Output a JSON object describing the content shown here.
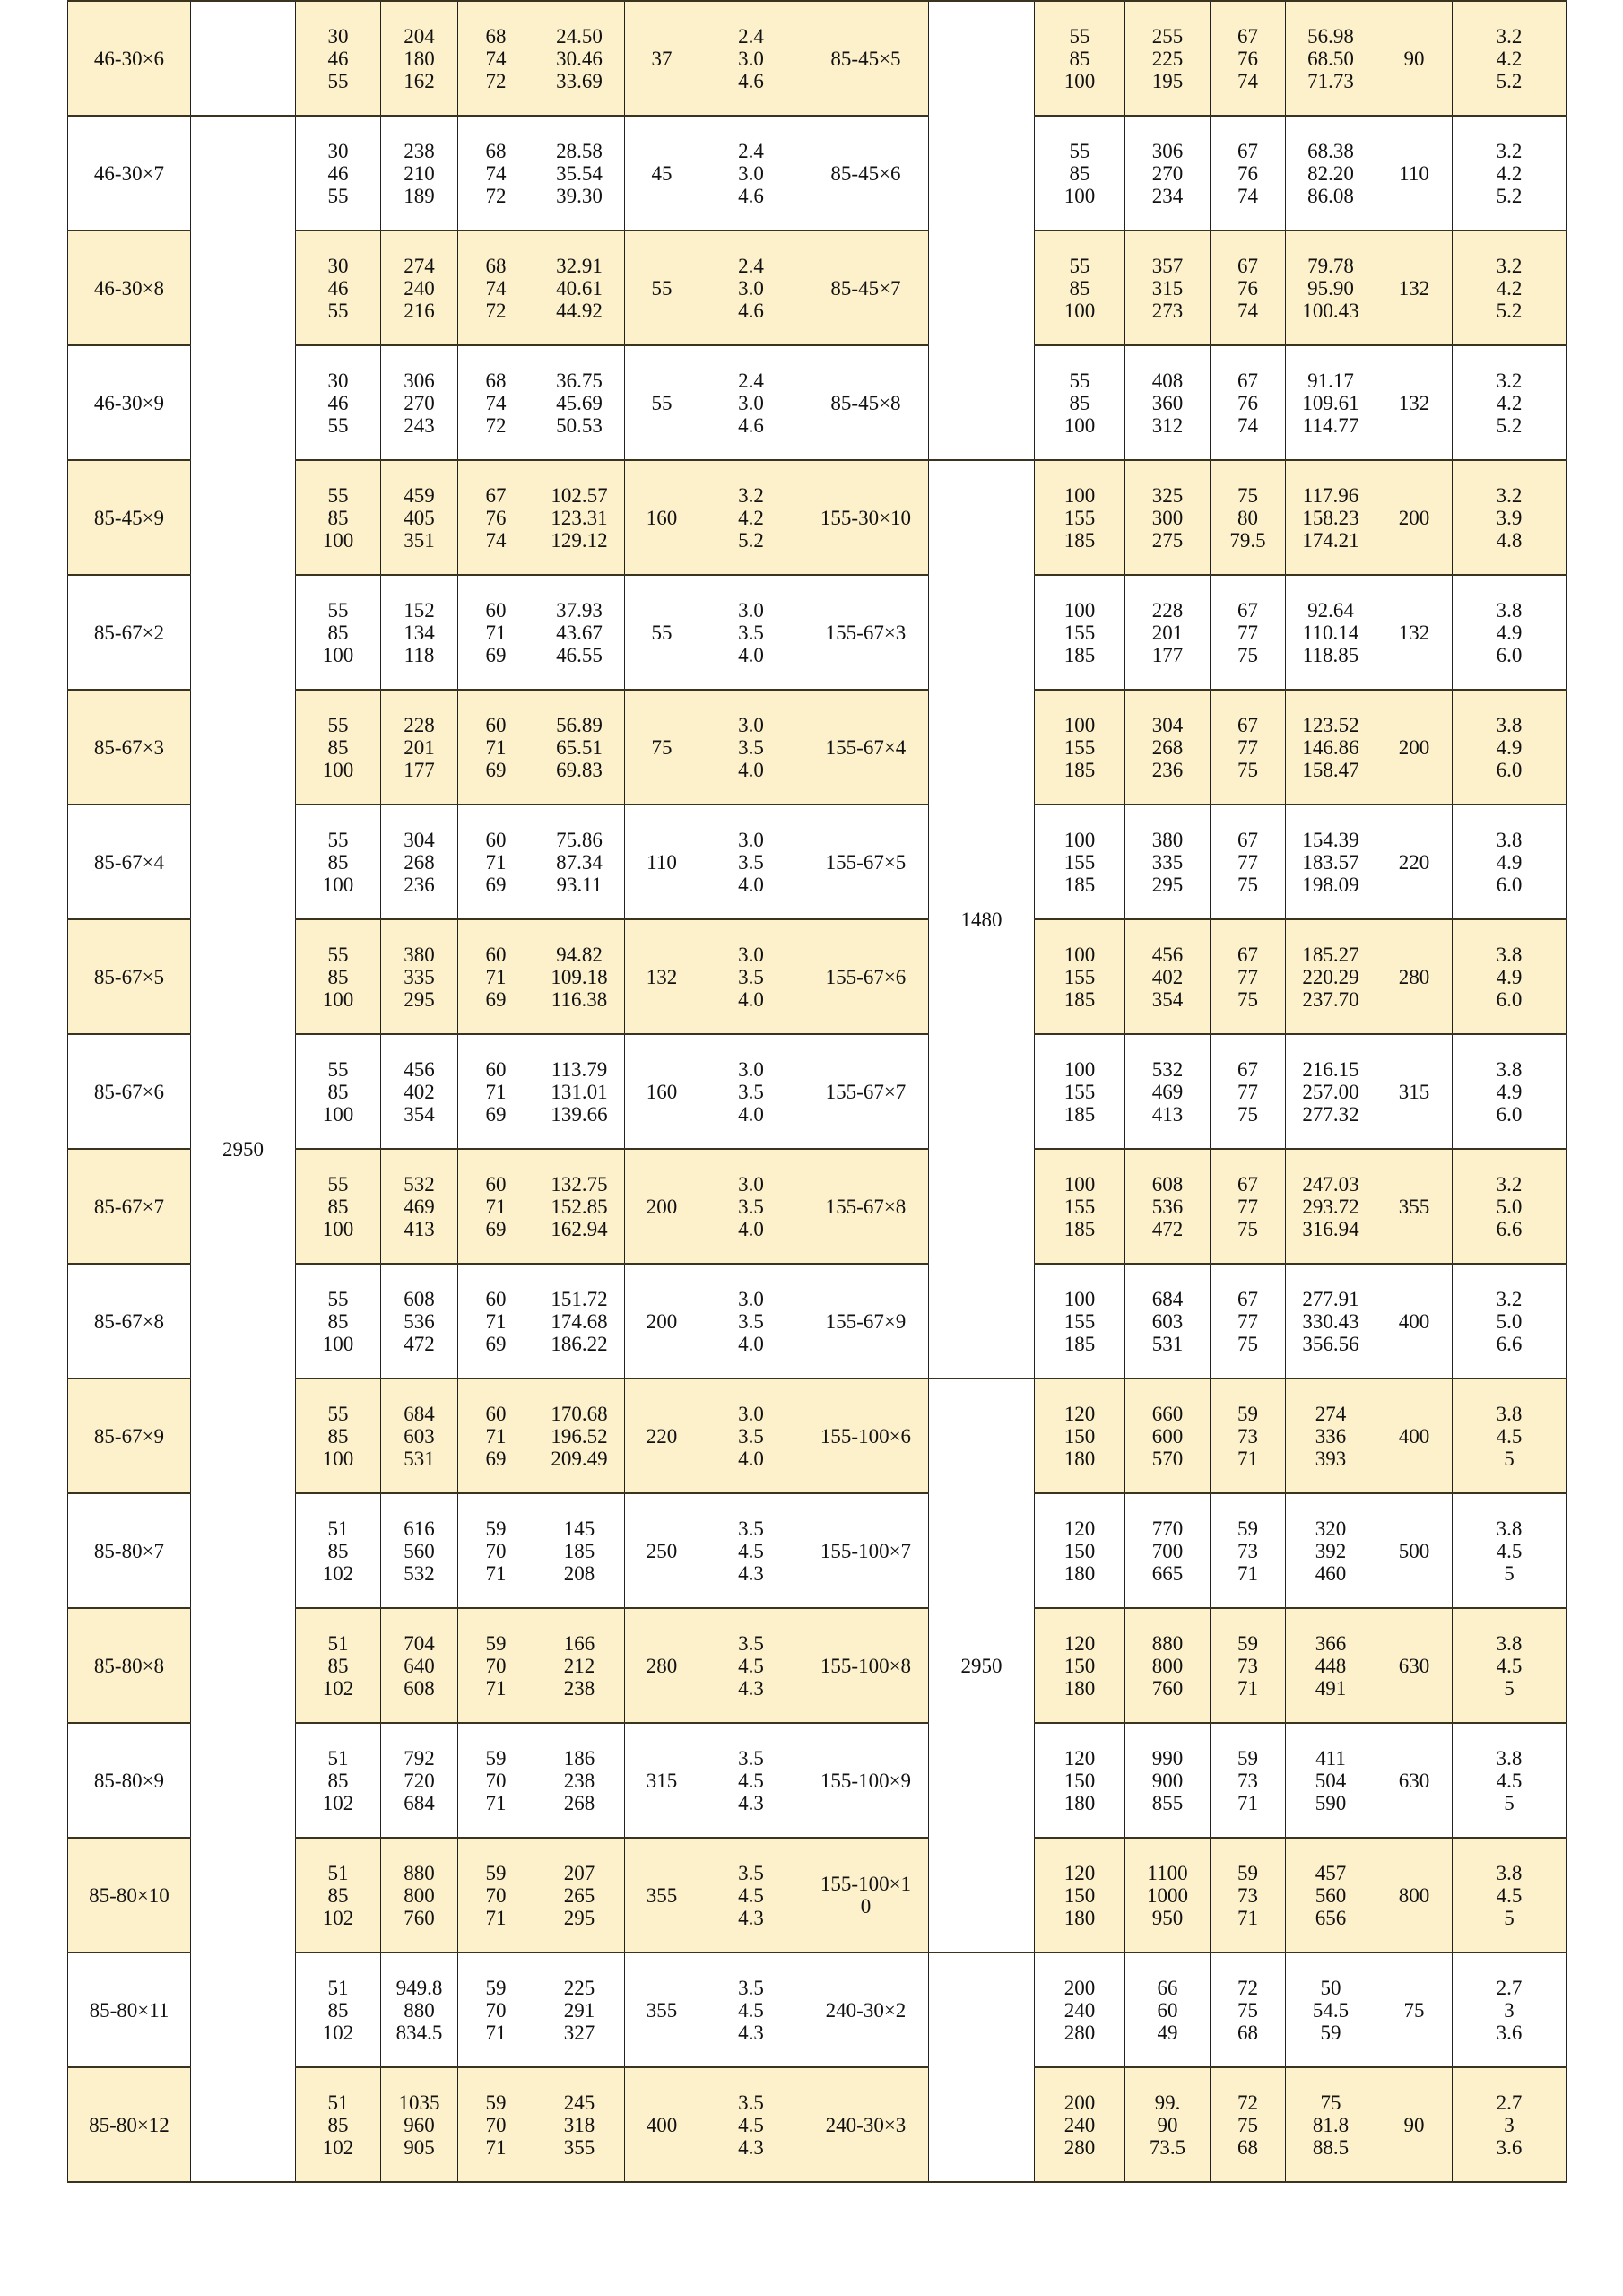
{
  "colors": {
    "highlight_row": "#fdf1cc",
    "plain_row": "#ffffff",
    "border": "#222222"
  },
  "merged": {
    "left_length": "2950",
    "right_length_a": "1480",
    "right_length_b": "2950"
  },
  "rows": [
    {
      "l": "46-30×6",
      "a": "30\n46\n55",
      "b": "204\n180\n162",
      "c": "68\n74\n72",
      "d": "24.50\n30.46\n33.69",
      "e": "37",
      "f": "2.4\n3.0\n4.6",
      "r": "85-45×5",
      "g": "55\n85\n100",
      "h": "255\n225\n195",
      "i": "67\n76\n74",
      "j": "56.98\n68.50\n71.73",
      "k": "90",
      "m": "3.2\n4.2\n5.2"
    },
    {
      "l": "46-30×7",
      "a": "30\n46\n55",
      "b": "238\n210\n189",
      "c": "68\n74\n72",
      "d": "28.58\n35.54\n39.30",
      "e": "45",
      "f": "2.4\n3.0\n4.6",
      "r": "85-45×6",
      "g": "55\n85\n100",
      "h": "306\n270\n234",
      "i": "67\n76\n74",
      "j": "68.38\n82.20\n86.08",
      "k": "110",
      "m": "3.2\n4.2\n5.2"
    },
    {
      "l": "46-30×8",
      "a": "30\n46\n55",
      "b": "274\n240\n216",
      "c": "68\n74\n72",
      "d": "32.91\n40.61\n44.92",
      "e": "55",
      "f": "2.4\n3.0\n4.6",
      "r": "85-45×7",
      "g": "55\n85\n100",
      "h": "357\n315\n273",
      "i": "67\n76\n74",
      "j": "79.78\n95.90\n100.43",
      "k": "132",
      "m": "3.2\n4.2\n5.2"
    },
    {
      "l": "46-30×9",
      "a": "30\n46\n55",
      "b": "306\n270\n243",
      "c": "68\n74\n72",
      "d": "36.75\n45.69\n50.53",
      "e": "55",
      "f": "2.4\n3.0\n4.6",
      "r": "85-45×8",
      "g": "55\n85\n100",
      "h": "408\n360\n312",
      "i": "67\n76\n74",
      "j": "91.17\n109.61\n114.77",
      "k": "132",
      "m": "3.2\n4.2\n5.2"
    },
    {
      "l": "85-45×9",
      "a": "55\n85\n100",
      "b": "459\n405\n351",
      "c": "67\n76\n74",
      "d": "102.57\n123.31\n129.12",
      "e": "160",
      "f": "3.2\n4.2\n5.2",
      "r": "155-30×10",
      "g": "100\n155\n185",
      "h": "325\n300\n275",
      "i": "75\n80\n79.5",
      "j": "117.96\n158.23\n174.21",
      "k": "200",
      "m": "3.2\n3.9\n4.8"
    },
    {
      "l": "85-67×2",
      "a": "55\n85\n100",
      "b": "152\n134\n118",
      "c": "60\n71\n69",
      "d": "37.93\n43.67\n46.55",
      "e": "55",
      "f": "3.0\n3.5\n4.0",
      "r": "155-67×3",
      "g": "100\n155\n185",
      "h": "228\n201\n177",
      "i": "67\n77\n75",
      "j": "92.64\n110.14\n118.85",
      "k": "132",
      "m": "3.8\n4.9\n6.0"
    },
    {
      "l": "85-67×3",
      "a": "55\n85\n100",
      "b": "228\n201\n177",
      "c": "60\n71\n69",
      "d": "56.89\n65.51\n69.83",
      "e": "75",
      "f": "3.0\n3.5\n4.0",
      "r": "155-67×4",
      "g": "100\n155\n185",
      "h": "304\n268\n236",
      "i": "67\n77\n75",
      "j": "123.52\n146.86\n158.47",
      "k": "200",
      "m": "3.8\n4.9\n6.0"
    },
    {
      "l": "85-67×4",
      "a": "55\n85\n100",
      "b": "304\n268\n236",
      "c": "60\n71\n69",
      "d": "75.86\n87.34\n93.11",
      "e": "110",
      "f": "3.0\n3.5\n4.0",
      "r": "155-67×5",
      "g": "100\n155\n185",
      "h": "380\n335\n295",
      "i": "67\n77\n75",
      "j": "154.39\n183.57\n198.09",
      "k": "220",
      "m": "3.8\n4.9\n6.0"
    },
    {
      "l": "85-67×5",
      "a": "55\n85\n100",
      "b": "380\n335\n295",
      "c": "60\n71\n69",
      "d": "94.82\n109.18\n116.38",
      "e": "132",
      "f": "3.0\n3.5\n4.0",
      "r": "155-67×6",
      "g": "100\n155\n185",
      "h": "456\n402\n354",
      "i": "67\n77\n75",
      "j": "185.27\n220.29\n237.70",
      "k": "280",
      "m": "3.8\n4.9\n6.0"
    },
    {
      "l": "85-67×6",
      "a": "55\n85\n100",
      "b": "456\n402\n354",
      "c": "60\n71\n69",
      "d": "113.79\n131.01\n139.66",
      "e": "160",
      "f": "3.0\n3.5\n4.0",
      "r": "155-67×7",
      "g": "100\n155\n185",
      "h": "532\n469\n413",
      "i": "67\n77\n75",
      "j": "216.15\n257.00\n277.32",
      "k": "315",
      "m": "3.8\n4.9\n6.0"
    },
    {
      "l": "85-67×7",
      "a": "55\n85\n100",
      "b": "532\n469\n413",
      "c": "60\n71\n69",
      "d": "132.75\n152.85\n162.94",
      "e": "200",
      "f": "3.0\n3.5\n4.0",
      "r": "155-67×8",
      "g": "100\n155\n185",
      "h": "608\n536\n472",
      "i": "67\n77\n75",
      "j": "247.03\n293.72\n316.94",
      "k": "355",
      "m": "3.2\n5.0\n6.6"
    },
    {
      "l": "85-67×8",
      "a": "55\n85\n100",
      "b": "608\n536\n472",
      "c": "60\n71\n69",
      "d": "151.72\n174.68\n186.22",
      "e": "200",
      "f": "3.0\n3.5\n4.0",
      "r": "155-67×9",
      "g": "100\n155\n185",
      "h": "684\n603\n531",
      "i": "67\n77\n75",
      "j": "277.91\n330.43\n356.56",
      "k": "400",
      "m": "3.2\n5.0\n6.6"
    },
    {
      "l": "85-67×9",
      "a": "55\n85\n100",
      "b": "684\n603\n531",
      "c": "60\n71\n69",
      "d": "170.68\n196.52\n209.49",
      "e": "220",
      "f": "3.0\n3.5\n4.0",
      "r": "155-100×6",
      "g": "120\n150\n180",
      "h": "660\n600\n570",
      "i": "59\n73\n71",
      "j": "274\n336\n393",
      "k": "400",
      "m": "3.8\n4.5\n5"
    },
    {
      "l": "85-80×7",
      "a": "51\n85\n102",
      "b": "616\n560\n532",
      "c": "59\n70\n71",
      "d": "145\n185\n208",
      "e": "250",
      "f": "3.5\n4.5\n4.3",
      "r": "155-100×7",
      "g": "120\n150\n180",
      "h": "770\n700\n665",
      "i": "59\n73\n71",
      "j": "320\n392\n460",
      "k": "500",
      "m": "3.8\n4.5\n5"
    },
    {
      "l": "85-80×8",
      "a": "51\n85\n102",
      "b": "704\n640\n608",
      "c": "59\n70\n71",
      "d": "166\n212\n238",
      "e": "280",
      "f": "3.5\n4.5\n4.3",
      "r": "155-100×8",
      "g": "120\n150\n180",
      "h": "880\n800\n760",
      "i": "59\n73\n71",
      "j": "366\n448\n491",
      "k": "630",
      "m": "3.8\n4.5\n5"
    },
    {
      "l": "85-80×9",
      "a": "51\n85\n102",
      "b": "792\n720\n684",
      "c": "59\n70\n71",
      "d": "186\n238\n268",
      "e": "315",
      "f": "3.5\n4.5\n4.3",
      "r": "155-100×9",
      "g": "120\n150\n180",
      "h": "990\n900\n855",
      "i": "59\n73\n71",
      "j": "411\n504\n590",
      "k": "630",
      "m": "3.8\n4.5\n5"
    },
    {
      "l": "85-80×10",
      "a": "51\n85\n102",
      "b": "880\n800\n760",
      "c": "59\n70\n71",
      "d": "207\n265\n295",
      "e": "355",
      "f": "3.5\n4.5\n4.3",
      "r": "155-100×1\n0",
      "g": "120\n150\n180",
      "h": "1100\n1000\n950",
      "i": "59\n73\n71",
      "j": "457\n560\n656",
      "k": "800",
      "m": "3.8\n4.5\n5"
    },
    {
      "l": "85-80×11",
      "a": "51\n85\n102",
      "b": "949.8\n880\n834.5",
      "c": "59\n70\n71",
      "d": "225\n291\n327",
      "e": "355",
      "f": "3.5\n4.5\n4.3",
      "r": "240-30×2",
      "g": "200\n240\n280",
      "h": "66\n60\n49",
      "i": "72\n75\n68",
      "j": "50\n54.5\n59",
      "k": "75",
      "m": "2.7\n3\n3.6"
    },
    {
      "l": "85-80×12",
      "a": "51\n85\n102",
      "b": "1035\n960\n905",
      "c": "59\n70\n71",
      "d": "245\n318\n355",
      "e": "400",
      "f": "3.5\n4.5\n4.3",
      "r": "240-30×3",
      "g": "200\n240\n280",
      "h": "99.\n90\n73.5",
      "i": "72\n75\n68",
      "j": "75\n81.8\n88.5",
      "k": "90",
      "m": "2.7\n3\n3.6"
    }
  ]
}
